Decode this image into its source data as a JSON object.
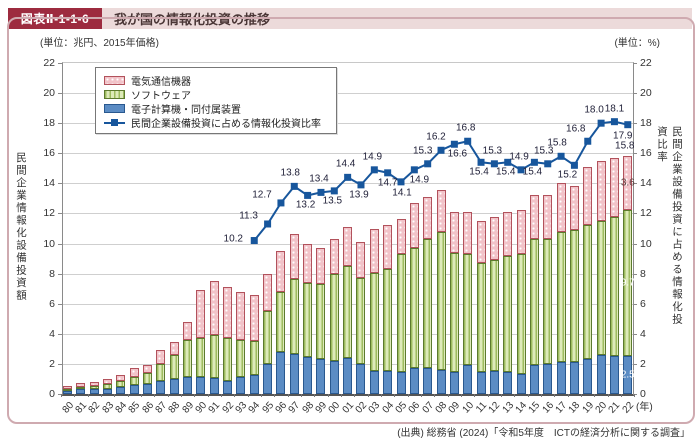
{
  "header": {
    "badge": "図表Ⅱ-1-1-6",
    "title": "我が国の情報化投資の推移"
  },
  "units": {
    "left": "(単位：兆円、2015年価格)",
    "right": "(単位：%)"
  },
  "axis_titles": {
    "left": "民間企業情報化設備投資額",
    "right": "民間企業設備投資に占める情報化投資比率"
  },
  "x_axis_suffix": "(年)",
  "legend": [
    {
      "label": "電気通信機器",
      "swatch": "pink-dotted"
    },
    {
      "label": "ソフトウェア",
      "swatch": "green-striped"
    },
    {
      "label": "電子計算機・同付属装置",
      "swatch": "blue-solid"
    },
    {
      "label": "民間企業設備投資に占める情報化投資比率",
      "swatch": "line-marker"
    }
  ],
  "footer": {
    "source": "(出典) 総務省 (2024)「令和5年度　ICTの経済分析に関する調査」"
  },
  "colors": {
    "badge_bg": "#9d2b3f",
    "title_strip_bg": "#ecdada",
    "frame_border": "#cfaab0",
    "bar_blue": "#5b8cc4",
    "bar_green": "#ddeab9",
    "bar_green_stripe": "#9dbb5e",
    "bar_pink": "#f2c3c9",
    "line": "#17569c",
    "grid": "#cfcfcf"
  },
  "chart_data": {
    "type": "bar",
    "subtype": "stacked-bars-with-line",
    "title": "我が国の情報化投資の推移",
    "xlabel": "(年)",
    "ylabel_left": "民間企業情報化設備投資額",
    "ylabel_right": "民間企業設備投資に占める情報化投資比率",
    "ylim_left": [
      0,
      22
    ],
    "ylim_right": [
      0,
      22
    ],
    "ytick_step": 2,
    "grid": true,
    "legend_position": "top-left",
    "categories": [
      "80",
      "81",
      "82",
      "83",
      "84",
      "85",
      "86",
      "87",
      "88",
      "89",
      "90",
      "91",
      "92",
      "93",
      "94",
      "95",
      "96",
      "97",
      "98",
      "99",
      "00",
      "01",
      "02",
      "03",
      "04",
      "05",
      "06",
      "07",
      "08",
      "09",
      "10",
      "11",
      "12",
      "13",
      "14",
      "15",
      "16",
      "17",
      "18",
      "19",
      "20",
      "21",
      "22"
    ],
    "series": [
      {
        "name": "電子計算機・同付属装置",
        "type": "bar",
        "stack_order": 1,
        "unit": "兆円",
        "values": [
          0.2,
          0.3,
          0.3,
          0.35,
          0.45,
          0.6,
          0.65,
          0.85,
          1.0,
          1.1,
          1.1,
          1.05,
          0.85,
          1.15,
          1.25,
          2.0,
          2.8,
          2.65,
          2.45,
          2.35,
          2.2,
          2.4,
          2.0,
          1.5,
          1.5,
          1.45,
          1.7,
          1.7,
          1.6,
          1.45,
          1.9,
          1.45,
          1.5,
          1.45,
          1.35,
          1.9,
          2.0,
          2.1,
          2.1,
          2.3,
          2.6,
          2.5,
          2.5
        ]
      },
      {
        "name": "ソフトウェア",
        "type": "bar",
        "stack_order": 2,
        "unit": "兆円",
        "values": [
          0.1,
          0.15,
          0.2,
          0.3,
          0.4,
          0.55,
          0.75,
          1.15,
          1.6,
          2.5,
          2.65,
          2.9,
          2.9,
          2.45,
          2.25,
          3.5,
          3.95,
          5.0,
          4.95,
          4.95,
          5.8,
          6.1,
          5.7,
          6.55,
          6.8,
          7.85,
          8.0,
          8.6,
          9.2,
          7.95,
          7.4,
          7.25,
          7.4,
          7.75,
          7.95,
          8.4,
          8.3,
          8.7,
          8.8,
          8.9,
          8.9,
          9.25,
          9.7
        ]
      },
      {
        "name": "電気通信機器",
        "type": "bar",
        "stack_order": 3,
        "unit": "兆円",
        "values": [
          0.2,
          0.25,
          0.3,
          0.35,
          0.4,
          0.6,
          0.55,
          0.9,
          0.85,
          1.2,
          3.15,
          3.55,
          3.35,
          3.15,
          3.1,
          2.5,
          2.75,
          3.0,
          2.6,
          2.4,
          2.3,
          2.6,
          2.4,
          2.95,
          2.9,
          2.3,
          3.0,
          2.8,
          2.75,
          2.7,
          2.8,
          2.8,
          2.85,
          2.9,
          2.9,
          2.9,
          2.9,
          3.2,
          2.9,
          3.9,
          4.0,
          3.95,
          3.6
        ]
      },
      {
        "name": "民間企業設備投資に占める情報化投資比率",
        "type": "line",
        "unit": "%",
        "start_index": 14,
        "values": [
          10.2,
          11.3,
          12.7,
          13.8,
          13.2,
          13.4,
          13.5,
          14.4,
          13.9,
          14.9,
          14.7,
          14.1,
          14.9,
          15.3,
          16.2,
          16.6,
          16.8,
          15.4,
          15.3,
          15.4,
          14.9,
          15.4,
          15.3,
          15.8,
          15.2,
          16.8,
          18.0,
          18.1,
          17.9
        ],
        "labels": [
          "10.2",
          "11.3",
          "12.7",
          "13.8",
          "13.2",
          "13.4",
          "13.5",
          "14.4",
          "13.9",
          "14.9",
          "14.7",
          "14.1",
          "14.9",
          "15.3",
          "16.2",
          "16.6",
          "16.8",
          "15.4",
          "15.3",
          "15.4",
          "14.9",
          "15.4",
          "15.3",
          "15.8",
          "15.2",
          "16.8",
          "18.0",
          "18.1",
          "17.9"
        ],
        "label_offsets": [
          [
            -21,
            -2
          ],
          [
            -19,
            -8
          ],
          [
            -19,
            -8
          ],
          [
            -4,
            -13
          ],
          [
            -2,
            10
          ],
          [
            -2,
            -13
          ],
          [
            -2,
            10
          ],
          [
            -2,
            -13
          ],
          [
            -2,
            10
          ],
          [
            -2,
            -13
          ],
          [
            0,
            10
          ],
          [
            1,
            11
          ],
          [
            5,
            10
          ],
          [
            -5,
            -13
          ],
          [
            -5,
            -13
          ],
          [
            3,
            10
          ],
          [
            -2,
            -13
          ],
          [
            -2,
            10
          ],
          [
            -2,
            -13
          ],
          [
            -2,
            10
          ],
          [
            -2,
            -13
          ],
          [
            -2,
            10
          ],
          [
            -4,
            -13
          ],
          [
            -4,
            -13
          ],
          [
            -7,
            10
          ],
          [
            -12,
            -12
          ],
          [
            -7,
            -13
          ],
          [
            0,
            -13
          ],
          [
            -5,
            11
          ]
        ]
      }
    ],
    "annotations_last_bar": {
      "year": "22",
      "total": "15.8",
      "segments": [
        {
          "series": "電気通信機器",
          "label": "3.6",
          "color": "#5a3c3c"
        },
        {
          "series": "ソフトウェア",
          "label": "9.7",
          "color": "#ffffff"
        },
        {
          "series": "電子計算機・同付属装置",
          "label": "2.5",
          "color": "#ffffff"
        }
      ]
    }
  }
}
